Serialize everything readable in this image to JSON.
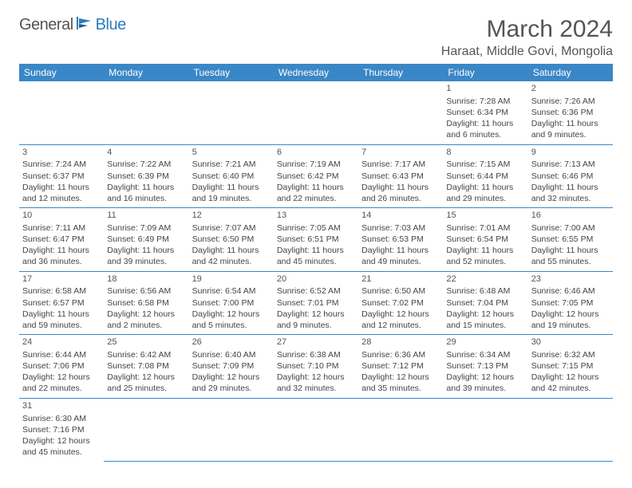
{
  "brand": {
    "part1": "General",
    "part2": "Blue"
  },
  "title": "March 2024",
  "location": "Haraat, Middle Govi, Mongolia",
  "colors": {
    "header_bg": "#3a87c7",
    "header_fg": "#ffffff",
    "brand_blue": "#2b7bbc",
    "text": "#444444",
    "border": "#3a87c7"
  },
  "day_headers": [
    "Sunday",
    "Monday",
    "Tuesday",
    "Wednesday",
    "Thursday",
    "Friday",
    "Saturday"
  ],
  "weeks": [
    [
      null,
      null,
      null,
      null,
      null,
      {
        "n": "1",
        "sr": "7:28 AM",
        "ss": "6:34 PM",
        "dl": "11 hours and 6 minutes."
      },
      {
        "n": "2",
        "sr": "7:26 AM",
        "ss": "6:36 PM",
        "dl": "11 hours and 9 minutes."
      }
    ],
    [
      {
        "n": "3",
        "sr": "7:24 AM",
        "ss": "6:37 PM",
        "dl": "11 hours and 12 minutes."
      },
      {
        "n": "4",
        "sr": "7:22 AM",
        "ss": "6:39 PM",
        "dl": "11 hours and 16 minutes."
      },
      {
        "n": "5",
        "sr": "7:21 AM",
        "ss": "6:40 PM",
        "dl": "11 hours and 19 minutes."
      },
      {
        "n": "6",
        "sr": "7:19 AM",
        "ss": "6:42 PM",
        "dl": "11 hours and 22 minutes."
      },
      {
        "n": "7",
        "sr": "7:17 AM",
        "ss": "6:43 PM",
        "dl": "11 hours and 26 minutes."
      },
      {
        "n": "8",
        "sr": "7:15 AM",
        "ss": "6:44 PM",
        "dl": "11 hours and 29 minutes."
      },
      {
        "n": "9",
        "sr": "7:13 AM",
        "ss": "6:46 PM",
        "dl": "11 hours and 32 minutes."
      }
    ],
    [
      {
        "n": "10",
        "sr": "7:11 AM",
        "ss": "6:47 PM",
        "dl": "11 hours and 36 minutes."
      },
      {
        "n": "11",
        "sr": "7:09 AM",
        "ss": "6:49 PM",
        "dl": "11 hours and 39 minutes."
      },
      {
        "n": "12",
        "sr": "7:07 AM",
        "ss": "6:50 PM",
        "dl": "11 hours and 42 minutes."
      },
      {
        "n": "13",
        "sr": "7:05 AM",
        "ss": "6:51 PM",
        "dl": "11 hours and 45 minutes."
      },
      {
        "n": "14",
        "sr": "7:03 AM",
        "ss": "6:53 PM",
        "dl": "11 hours and 49 minutes."
      },
      {
        "n": "15",
        "sr": "7:01 AM",
        "ss": "6:54 PM",
        "dl": "11 hours and 52 minutes."
      },
      {
        "n": "16",
        "sr": "7:00 AM",
        "ss": "6:55 PM",
        "dl": "11 hours and 55 minutes."
      }
    ],
    [
      {
        "n": "17",
        "sr": "6:58 AM",
        "ss": "6:57 PM",
        "dl": "11 hours and 59 minutes."
      },
      {
        "n": "18",
        "sr": "6:56 AM",
        "ss": "6:58 PM",
        "dl": "12 hours and 2 minutes."
      },
      {
        "n": "19",
        "sr": "6:54 AM",
        "ss": "7:00 PM",
        "dl": "12 hours and 5 minutes."
      },
      {
        "n": "20",
        "sr": "6:52 AM",
        "ss": "7:01 PM",
        "dl": "12 hours and 9 minutes."
      },
      {
        "n": "21",
        "sr": "6:50 AM",
        "ss": "7:02 PM",
        "dl": "12 hours and 12 minutes."
      },
      {
        "n": "22",
        "sr": "6:48 AM",
        "ss": "7:04 PM",
        "dl": "12 hours and 15 minutes."
      },
      {
        "n": "23",
        "sr": "6:46 AM",
        "ss": "7:05 PM",
        "dl": "12 hours and 19 minutes."
      }
    ],
    [
      {
        "n": "24",
        "sr": "6:44 AM",
        "ss": "7:06 PM",
        "dl": "12 hours and 22 minutes."
      },
      {
        "n": "25",
        "sr": "6:42 AM",
        "ss": "7:08 PM",
        "dl": "12 hours and 25 minutes."
      },
      {
        "n": "26",
        "sr": "6:40 AM",
        "ss": "7:09 PM",
        "dl": "12 hours and 29 minutes."
      },
      {
        "n": "27",
        "sr": "6:38 AM",
        "ss": "7:10 PM",
        "dl": "12 hours and 32 minutes."
      },
      {
        "n": "28",
        "sr": "6:36 AM",
        "ss": "7:12 PM",
        "dl": "12 hours and 35 minutes."
      },
      {
        "n": "29",
        "sr": "6:34 AM",
        "ss": "7:13 PM",
        "dl": "12 hours and 39 minutes."
      },
      {
        "n": "30",
        "sr": "6:32 AM",
        "ss": "7:15 PM",
        "dl": "12 hours and 42 minutes."
      }
    ],
    [
      {
        "n": "31",
        "sr": "6:30 AM",
        "ss": "7:16 PM",
        "dl": "12 hours and 45 minutes."
      },
      null,
      null,
      null,
      null,
      null,
      null
    ]
  ],
  "labels": {
    "sunrise": "Sunrise:",
    "sunset": "Sunset:",
    "daylight": "Daylight:"
  }
}
